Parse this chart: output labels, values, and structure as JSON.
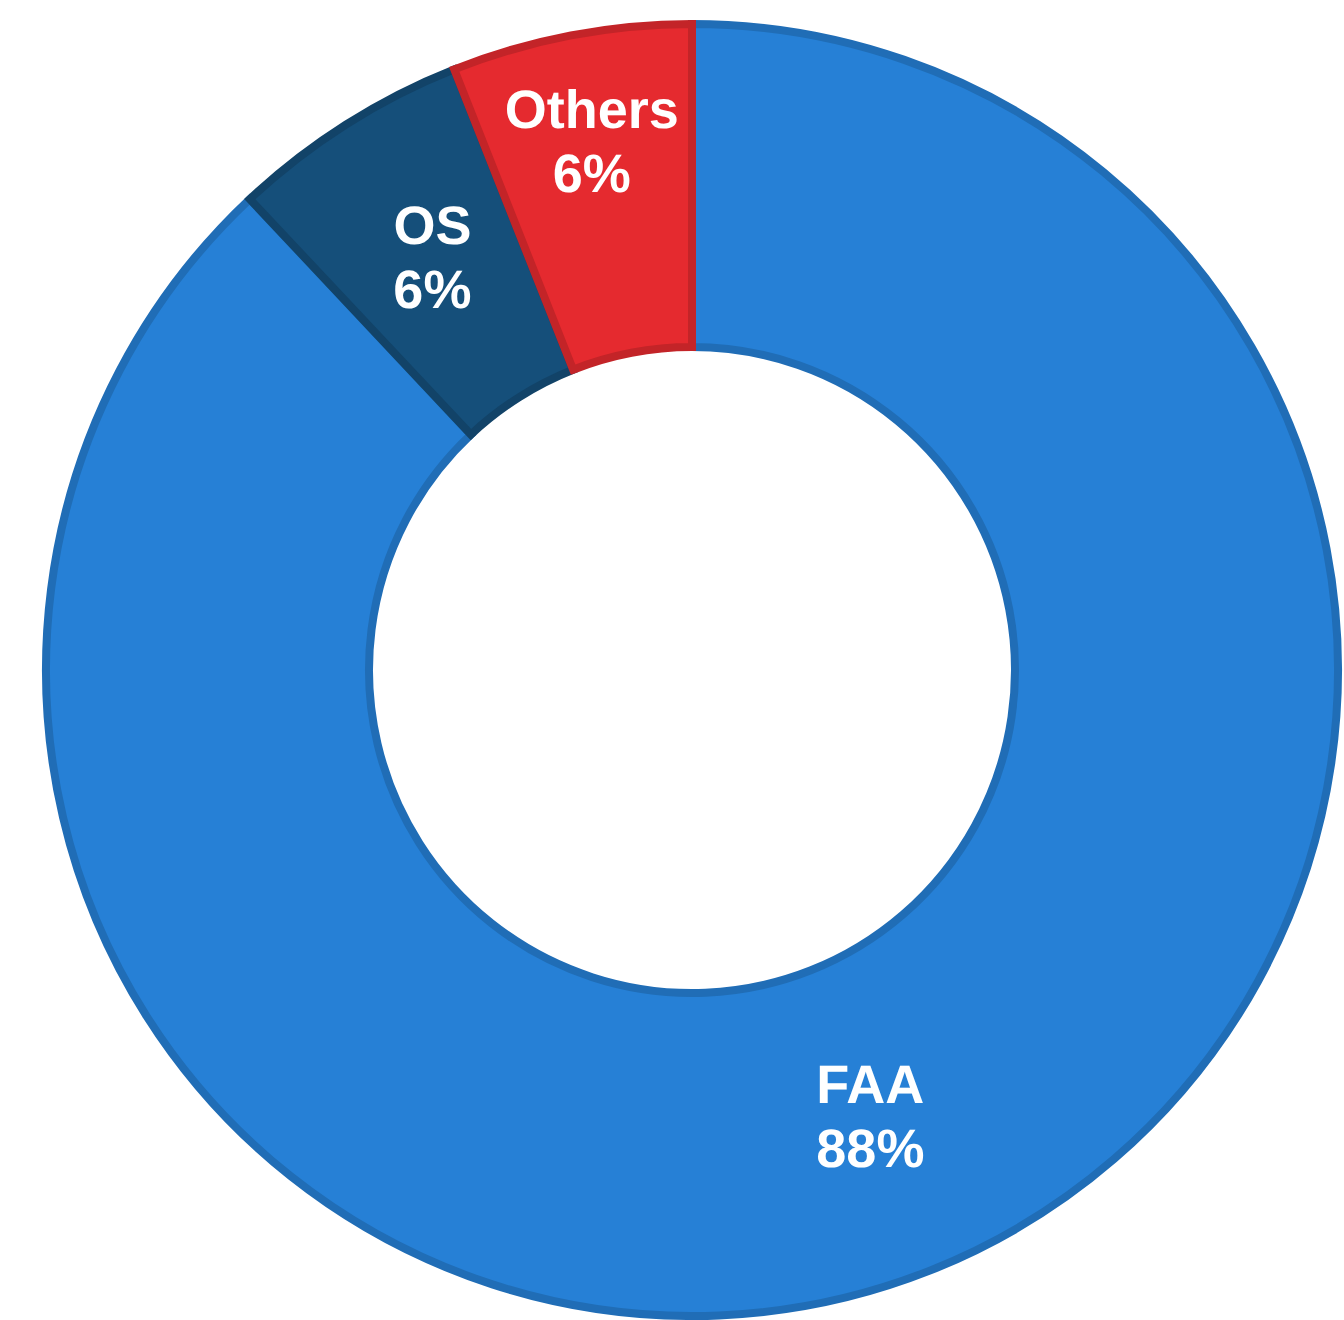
{
  "chart_data": {
    "type": "donut",
    "categories": [
      "FAA",
      "OS",
      "Others"
    ],
    "values": [
      88,
      6,
      6
    ],
    "colors": [
      "#2680d6",
      "#154f7a",
      "#e52a2f"
    ],
    "value_labels": [
      "88%",
      "6%",
      "6%"
    ],
    "legend": false
  }
}
